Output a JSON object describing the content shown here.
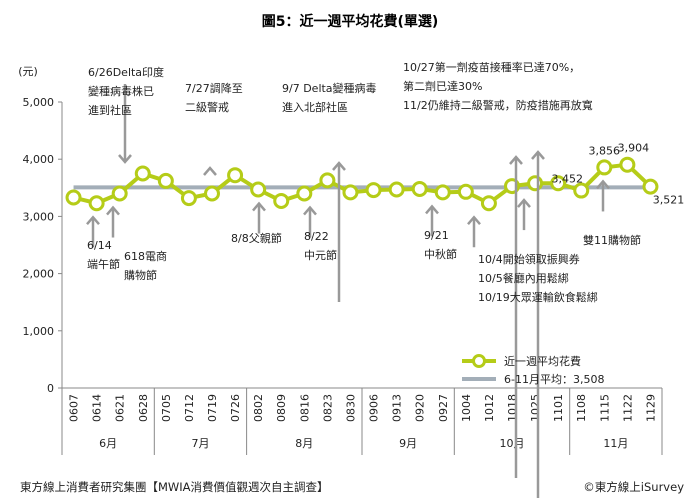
{
  "chart_data": {
    "type": "line",
    "title": "圖5：近一週平均花費(單選)",
    "ylabel": "(元)",
    "ylim": [
      0,
      5000
    ],
    "yticks": [
      "0",
      "1,000",
      "2,000",
      "3,000",
      "4,000",
      "5,000"
    ],
    "categories": [
      "0607",
      "0614",
      "0621",
      "0628",
      "0705",
      "0712",
      "0719",
      "0726",
      "0802",
      "0809",
      "0816",
      "0823",
      "0830",
      "0906",
      "0913",
      "0920",
      "0927",
      "1004",
      "1012",
      "1018",
      "1025",
      "1101",
      "1108",
      "1115",
      "1122",
      "1129"
    ],
    "months": [
      {
        "label": "6月",
        "from": 0,
        "to": 3
      },
      {
        "label": "7月",
        "from": 4,
        "to": 7
      },
      {
        "label": "8月",
        "from": 8,
        "to": 12
      },
      {
        "label": "9月",
        "from": 13,
        "to": 16
      },
      {
        "label": "10月",
        "from": 17,
        "to": 21
      },
      {
        "label": "11月",
        "from": 22,
        "to": 25
      }
    ],
    "series": [
      {
        "name": "近一週平均花費",
        "color": "#b5cc18",
        "values": [
          3330,
          3230,
          3400,
          3750,
          3620,
          3320,
          3400,
          3720,
          3470,
          3270,
          3400,
          3630,
          3420,
          3460,
          3470,
          3480,
          3420,
          3430,
          3230,
          3530,
          3580,
          3580,
          3452,
          3856,
          3904,
          3521
        ]
      },
      {
        "name": "6-11月平均：3,508",
        "color": "#a3aeb8",
        "value": 3508
      }
    ],
    "data_labels": [
      {
        "index": 22,
        "text": "3,452"
      },
      {
        "index": 23,
        "text": "3,856"
      },
      {
        "index": 24,
        "text": "3,904"
      },
      {
        "index": 25,
        "text": "3,521"
      }
    ],
    "annotations": [
      {
        "index": 2,
        "dir": "down",
        "lines": [
          "6/26Delta印度",
          "變種病毒株已",
          "進到社區"
        ]
      },
      {
        "index": 6,
        "dir": "down",
        "lines": [
          "7/27調降至",
          "二級警戒"
        ]
      },
      {
        "index": 11,
        "dir": "down",
        "lines": [
          "9/7 Delta變種病毒",
          "進入北部社區"
        ]
      },
      {
        "index": 19,
        "dir": "down",
        "lines": [
          "10/27第一劑疫苗接種率已達70%，",
          "第二劑已達30%",
          "11/2仍維持二級警戒，防疫措施再放寬"
        ]
      },
      {
        "index": 20,
        "dir": "down",
        "lines": []
      },
      {
        "index": 1,
        "dir": "up",
        "lines": [
          "6/14",
          "端午節"
        ]
      },
      {
        "index": 2,
        "dir": "up",
        "lines": [
          "618電商",
          "購物節"
        ]
      },
      {
        "index": 8,
        "dir": "up",
        "lines": [
          "8/8父親節"
        ]
      },
      {
        "index": 10,
        "dir": "up",
        "lines": [
          "8/22",
          "中元節"
        ]
      },
      {
        "index": 16,
        "dir": "up",
        "lines": [
          "9/21",
          "中秋節"
        ]
      },
      {
        "index": 18,
        "dir": "up",
        "lines": [
          "10/4開始領取振興券",
          "10/5餐廳內用鬆綁",
          "10/19大眾運輸飲食鬆綁"
        ]
      },
      {
        "index": 19,
        "dir": "up",
        "lines": []
      },
      {
        "index": 23,
        "dir": "up",
        "lines": [
          "雙11購物節"
        ]
      }
    ],
    "legend_position": "bottom-right",
    "grid": false
  },
  "footer": {
    "source": "東方線上消費者研究集團【MWIA消費價值觀週次自主調查】",
    "brand": "©東方線上iSurvey"
  }
}
